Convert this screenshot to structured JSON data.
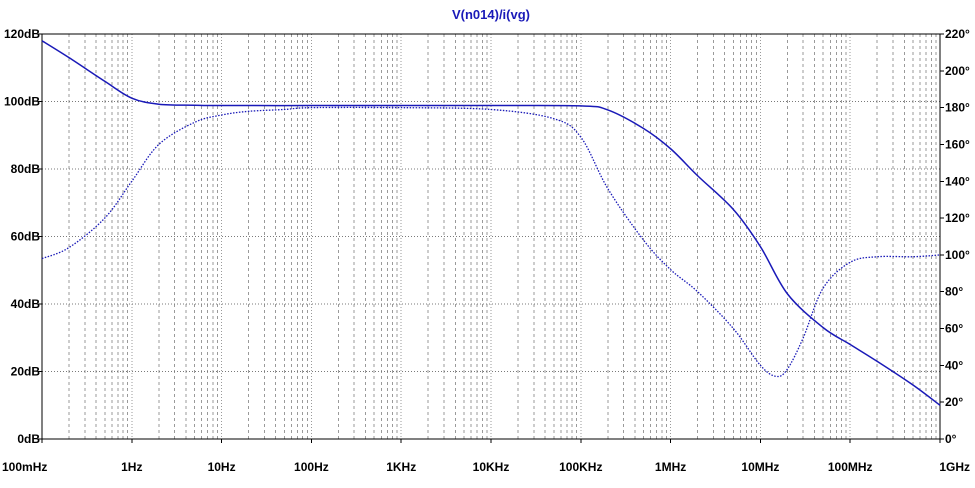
{
  "chart_data": {
    "type": "line",
    "title": "V(n014)/i(vg)",
    "x_scale": "log",
    "xlim": [
      0.1,
      1000000000
    ],
    "x_ticks": [
      0.1,
      1,
      10,
      100,
      1000,
      10000,
      100000,
      1000000,
      10000000,
      100000000,
      1000000000
    ],
    "x_tick_labels": [
      "100mHz",
      "1Hz",
      "10Hz",
      "100Hz",
      "1KHz",
      "10KHz",
      "100KHz",
      "1MHz",
      "10MHz",
      "100MHz",
      "1GHz"
    ],
    "y_left": {
      "lim": [
        0,
        120
      ],
      "ticks": [
        0,
        20,
        40,
        60,
        80,
        100,
        120
      ],
      "tick_labels": [
        "0dB",
        "20dB",
        "40dB",
        "60dB",
        "80dB",
        "100dB",
        "120dB"
      ]
    },
    "y_right": {
      "lim": [
        0,
        220
      ],
      "ticks": [
        0,
        20,
        40,
        60,
        80,
        100,
        120,
        140,
        160,
        180,
        200,
        220
      ],
      "tick_labels": [
        "0°",
        "20°",
        "40°",
        "60°",
        "80°",
        "100°",
        "120°",
        "140°",
        "160°",
        "180°",
        "200°",
        "220°"
      ]
    },
    "grid": true,
    "series": [
      {
        "axis": "left",
        "style": "solid",
        "x": [
          0.1,
          0.2,
          0.5,
          1,
          2,
          5,
          10,
          100,
          1000,
          10000,
          100000,
          200000,
          500000,
          1000000,
          2000000,
          5000000,
          10000000,
          20000000,
          50000000,
          100000000,
          200000000,
          500000000,
          1000000000
        ],
        "values": [
          118,
          113,
          106,
          101,
          99.2,
          98.9,
          98.8,
          98.8,
          98.8,
          98.8,
          98.7,
          97.5,
          92,
          86,
          78,
          68,
          57,
          43,
          33,
          28,
          23,
          16,
          10
        ]
      },
      {
        "axis": "right",
        "style": "dotted",
        "x": [
          0.1,
          0.2,
          0.5,
          1,
          2,
          5,
          10,
          20,
          50,
          100,
          1000,
          10000,
          50000,
          100000,
          200000,
          500000,
          1000000,
          2000000,
          5000000,
          10000000,
          15000000,
          20000000,
          30000000,
          50000000,
          100000000,
          200000000,
          500000000,
          1000000000
        ],
        "values": [
          98,
          104,
          120,
          140,
          160,
          172,
          176,
          178,
          179,
          180,
          180,
          179,
          174,
          164,
          136,
          108,
          92,
          80,
          60,
          40,
          34,
          38,
          55,
          82,
          96,
          99,
          99,
          100
        ]
      }
    ],
    "colors": {
      "trace": "#1a1ab8",
      "grid": "#9a9a9a",
      "frame": "#000000",
      "title": "#1a1ab8"
    }
  }
}
